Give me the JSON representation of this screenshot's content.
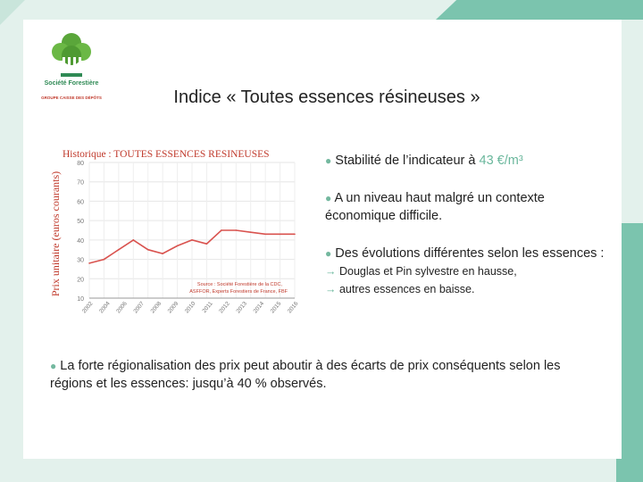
{
  "logo": {
    "name": "Société Forestière",
    "tagline": "",
    "group": "GROUPE CAISSE DES DÉPÔTS"
  },
  "title": "Indice « Toutes essences résineuses »",
  "bullets": {
    "b1_prefix": "Stabilité de l’indicateur à ",
    "b1_value": "43 €/m³",
    "b2": "A un niveau haut malgré un contexte économique difficile.",
    "b3": "Des évolutions différentes selon les essences :",
    "b3_sub1": "Douglas et Pin sylvestre en hausse,",
    "b3_sub2": "autres essences en baisse.",
    "bottom": "La forte régionalisation des prix peut aboutir à des écarts de prix conséquents selon les régions et les essences: jusqu’à 40 % observés."
  },
  "colors": {
    "accent": "#6ab79c",
    "line": "#d9534f"
  },
  "chart_data": {
    "type": "line",
    "title": "Historique : TOUTES ESSENCES RESINEUSES",
    "ylabel": "Prix unitaire (euros courants)",
    "xlabel": "",
    "source_line1": "Source : Société Forestière de la CDC,",
    "source_line2": "ASFFOR, Experts Forestiers de France, FBF",
    "ylim": [
      10,
      80
    ],
    "yticks": [
      10,
      20,
      30,
      40,
      50,
      60,
      70,
      80
    ],
    "x": [
      "2002",
      "2003",
      "2004",
      "2005",
      "2006",
      "2007",
      "2008",
      "2009",
      "2010",
      "2011",
      "2012",
      "2013",
      "2014",
      "2015",
      "2016"
    ],
    "xticks": [
      "2002",
      "2004",
      "2006",
      "2007",
      "2008",
      "2009",
      "2010",
      "2011",
      "2012",
      "2013",
      "2014",
      "2015",
      "2016"
    ],
    "values": [
      28,
      30,
      35,
      40,
      35,
      33,
      37,
      40,
      38,
      45,
      45,
      44,
      43,
      43,
      43
    ],
    "grid": true
  }
}
